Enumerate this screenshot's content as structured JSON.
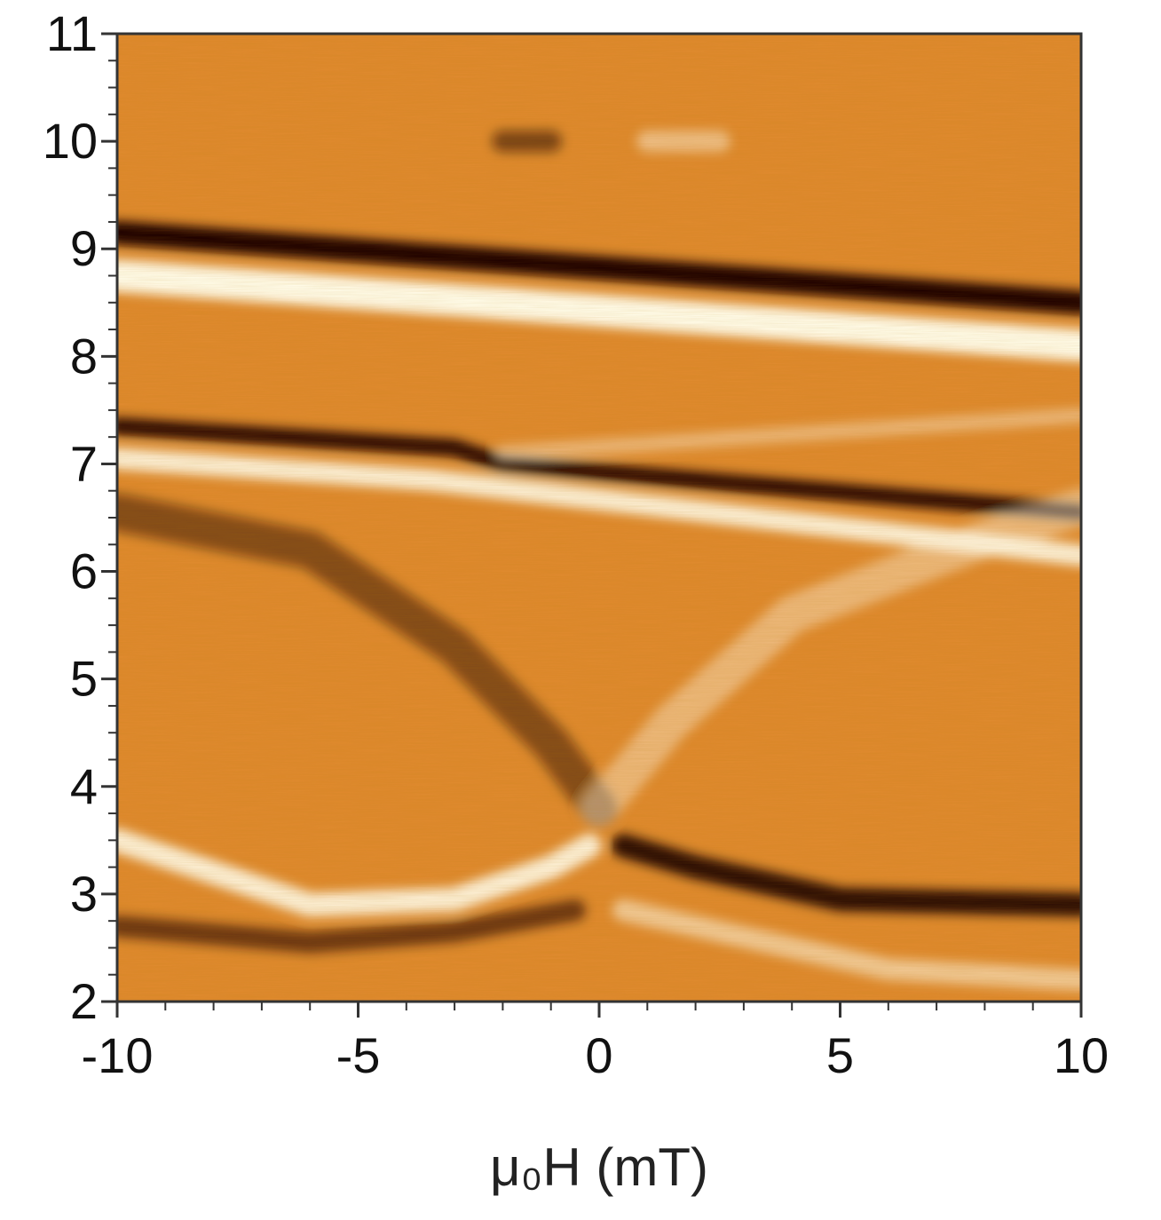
{
  "chart_data": {
    "type": "heatmap",
    "title": "",
    "xlabel": "μ₀H (mT)",
    "ylabel": "",
    "xlim": [
      -10,
      10
    ],
    "ylim": [
      2,
      11
    ],
    "x_ticks": [
      -10,
      -5,
      0,
      5,
      10
    ],
    "y_ticks": [
      2,
      3,
      4,
      5,
      6,
      7,
      8,
      9,
      10,
      11
    ],
    "colormap": [
      "#1a0400",
      "#6b2a00",
      "#c46410",
      "#e08a2c",
      "#f5c066",
      "#fffbe8"
    ],
    "background_color": "#df8a2e",
    "features": [
      {
        "kind": "dark",
        "points": [
          [
            -10,
            9.15
          ],
          [
            10,
            8.5
          ]
        ],
        "width": 0.22,
        "intensity": 1.0
      },
      {
        "kind": "bright",
        "points": [
          [
            -10,
            8.75
          ],
          [
            10,
            8.1
          ]
        ],
        "width": 0.3,
        "intensity": 1.0
      },
      {
        "kind": "dark",
        "points": [
          [
            -10,
            7.35
          ],
          [
            -3,
            7.15
          ],
          [
            -2,
            7.0
          ],
          [
            10,
            6.55
          ]
        ],
        "width": 0.16,
        "intensity": 0.95
      },
      {
        "kind": "bright",
        "points": [
          [
            -10,
            7.05
          ],
          [
            -3.5,
            6.85
          ],
          [
            10,
            6.15
          ]
        ],
        "width": 0.2,
        "intensity": 0.9
      },
      {
        "kind": "bright",
        "points": [
          [
            -2,
            7.1
          ],
          [
            10,
            7.45
          ]
        ],
        "width": 0.14,
        "intensity": 0.4
      },
      {
        "kind": "dark",
        "points": [
          [
            -10,
            6.55
          ],
          [
            -6,
            6.2
          ],
          [
            -3,
            5.3
          ],
          [
            -1,
            4.4
          ],
          [
            0,
            3.8
          ]
        ],
        "width": 0.35,
        "intensity": 0.45
      },
      {
        "kind": "bright",
        "points": [
          [
            0,
            3.8
          ],
          [
            1.5,
            4.6
          ],
          [
            4,
            5.6
          ],
          [
            8,
            6.3
          ],
          [
            10,
            6.6
          ]
        ],
        "width": 0.35,
        "intensity": 0.4
      },
      {
        "kind": "bright",
        "points": [
          [
            -10,
            3.5
          ],
          [
            -6,
            2.9
          ],
          [
            -3,
            2.95
          ],
          [
            -1,
            3.25
          ],
          [
            -0.2,
            3.45
          ]
        ],
        "width": 0.22,
        "intensity": 0.9
      },
      {
        "kind": "dark",
        "points": [
          [
            0.5,
            3.45
          ],
          [
            2,
            3.25
          ],
          [
            5,
            2.95
          ],
          [
            10,
            2.9
          ]
        ],
        "width": 0.22,
        "intensity": 0.9
      },
      {
        "kind": "dark",
        "points": [
          [
            -10,
            2.7
          ],
          [
            -6,
            2.55
          ],
          [
            -3,
            2.65
          ],
          [
            -0.5,
            2.85
          ]
        ],
        "width": 0.2,
        "intensity": 0.6
      },
      {
        "kind": "bright",
        "points": [
          [
            0.5,
            2.85
          ],
          [
            3,
            2.6
          ],
          [
            6,
            2.3
          ],
          [
            10,
            2.2
          ]
        ],
        "width": 0.2,
        "intensity": 0.55
      },
      {
        "kind": "dark",
        "points": [
          [
            -2,
            10.0
          ],
          [
            -1,
            10.0
          ]
        ],
        "width": 0.2,
        "intensity": 0.5
      },
      {
        "kind": "bright",
        "points": [
          [
            1.0,
            10.0
          ],
          [
            2.5,
            10.0
          ]
        ],
        "width": 0.2,
        "intensity": 0.45
      }
    ]
  }
}
